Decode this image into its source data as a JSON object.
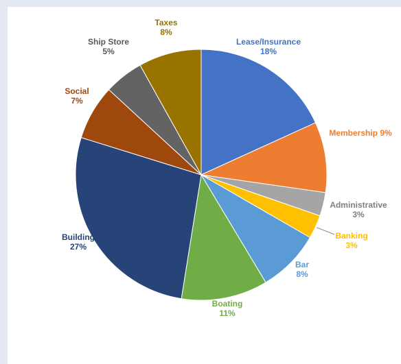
{
  "chart_data": {
    "type": "pie",
    "title": "",
    "slices": [
      {
        "label": "Lease/Insurance",
        "value_label": "18%",
        "value": 18,
        "color": "#4472c4"
      },
      {
        "label": "Membership",
        "value_label": "9%",
        "value": 9,
        "color": "#ed7d31"
      },
      {
        "label": "Administrative",
        "value_label": "3%",
        "value": 3,
        "color": "#a5a5a5"
      },
      {
        "label": "Banking",
        "value_label": "3%",
        "value": 3,
        "color": "#ffc000"
      },
      {
        "label": "Bar",
        "value_label": "8%",
        "value": 8,
        "color": "#5b9bd5"
      },
      {
        "label": "Boating",
        "value_label": "11%",
        "value": 11,
        "color": "#70ad47"
      },
      {
        "label": "Building",
        "value_label": "27%",
        "value": 27,
        "color": "#264478"
      },
      {
        "label": "Social",
        "value_label": "7%",
        "value": 7,
        "color": "#9e480e"
      },
      {
        "label": "Ship Store",
        "value_label": "5%",
        "value": 5,
        "color": "#636363"
      },
      {
        "label": "Taxes",
        "value_label": "8%",
        "value": 8,
        "color": "#997300"
      }
    ],
    "label_colors": {
      "Lease/Insurance": "#4472c4",
      "Membership": "#ed7d31",
      "Administrative": "#7f7f7f",
      "Banking": "#ffc000",
      "Bar": "#5b9bd5",
      "Boating": "#70ad47",
      "Building": "#264478",
      "Social": "#9e480e",
      "Ship Store": "#595959",
      "Taxes": "#997300"
    },
    "legend": "none"
  }
}
